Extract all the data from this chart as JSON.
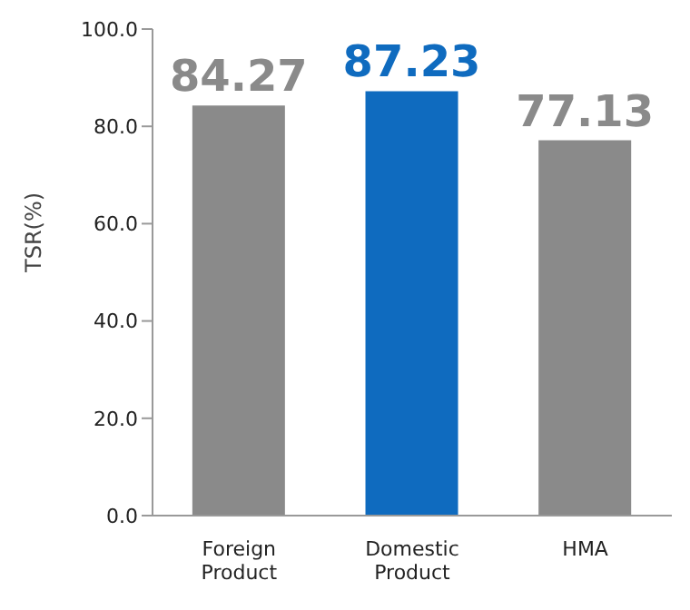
{
  "chart_data": {
    "type": "bar",
    "ylabel": "TSR(%)",
    "categories": [
      "Foreign Product",
      "Domestic Product",
      "HMA"
    ],
    "values": [
      84.27,
      87.23,
      77.13
    ],
    "colors": [
      "#8a8a8a",
      "#0f6bbf",
      "#8a8a8a"
    ],
    "ylim": [
      0,
      100
    ],
    "yticks": [
      {
        "value": 0,
        "label": "0.0"
      },
      {
        "value": 20,
        "label": "20.0"
      },
      {
        "value": 40,
        "label": "40.0"
      },
      {
        "value": 60,
        "label": "60.0"
      },
      {
        "value": 80,
        "label": "80.0"
      },
      {
        "value": 100,
        "label": "100.0"
      }
    ],
    "data_labels": true,
    "grid": false,
    "legend": false
  }
}
